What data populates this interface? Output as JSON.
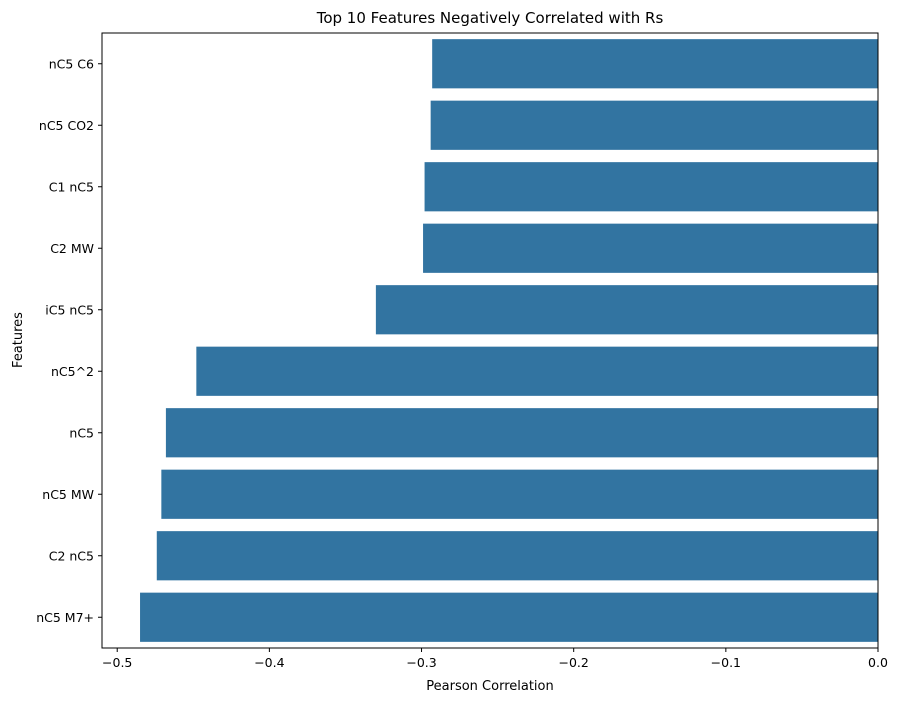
{
  "chart_data": {
    "type": "bar",
    "orientation": "horizontal",
    "title": "Top 10 Features Negatively Correlated with Rs",
    "xlabel": "Pearson Correlation",
    "ylabel": "Features",
    "categories": [
      "nC5 C6",
      "nC5 CO2",
      "C1 nC5",
      "C2 MW",
      "iC5 nC5",
      "nC5^2",
      "nC5",
      "nC5 MW",
      "C2 nC5",
      "nC5 M7+"
    ],
    "values": [
      -0.293,
      -0.294,
      -0.298,
      -0.299,
      -0.33,
      -0.448,
      -0.468,
      -0.471,
      -0.474,
      -0.485
    ],
    "xlim": [
      -0.51,
      0.0
    ],
    "xticks": [
      -0.5,
      -0.4,
      -0.3,
      -0.2,
      -0.1,
      0.0
    ],
    "xtick_labels": [
      "−0.5",
      "−0.4",
      "−0.3",
      "−0.2",
      "−0.1",
      "0.0"
    ],
    "grid": false,
    "bar_color": "#3274a1"
  }
}
